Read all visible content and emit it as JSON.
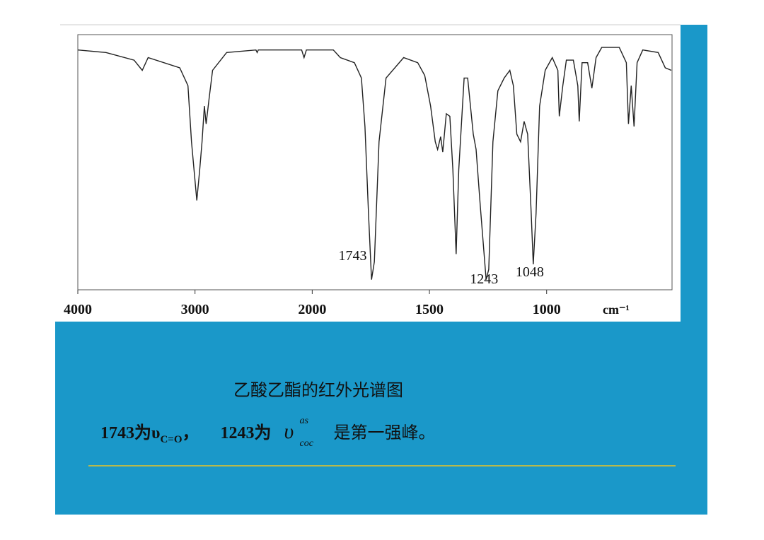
{
  "chart_data": {
    "type": "line",
    "x_label": "cm⁻¹",
    "xlim": [
      4000,
      465
    ],
    "xticks": [
      4000,
      3000,
      2000,
      1500,
      1000
    ],
    "scale_change": 2000,
    "ylim": [
      0,
      100
    ],
    "x": [
      4000,
      3760,
      3520,
      3450,
      3400,
      3130,
      3060,
      3030,
      2985,
      2960,
      2940,
      2920,
      2905,
      2880,
      2850,
      2730,
      2480,
      2470,
      2460,
      2090,
      2070,
      2050,
      1910,
      1880,
      1820,
      1790,
      1775,
      1760,
      1747,
      1735,
      1715,
      1685,
      1610,
      1550,
      1520,
      1495,
      1475,
      1465,
      1452,
      1443,
      1428,
      1413,
      1400,
      1386,
      1375,
      1352,
      1337,
      1313,
      1301,
      1283,
      1258,
      1247,
      1229,
      1208,
      1181,
      1157,
      1142,
      1127,
      1111,
      1096,
      1081,
      1066,
      1057,
      1045,
      1030,
      1006,
      976,
      952,
      946,
      931,
      916,
      886,
      867,
      861,
      849,
      825,
      807,
      789,
      765,
      690,
      660,
      651,
      639,
      627,
      614,
      590,
      524,
      494,
      468
    ],
    "series": [
      {
        "color": "#222222",
        "values": [
          94,
          93,
          90,
          86,
          91,
          87,
          80,
          58,
          35,
          47,
          58,
          72,
          65,
          75,
          86,
          93,
          94,
          93,
          94,
          94,
          91,
          94,
          94,
          91,
          89,
          83,
          64,
          30,
          4,
          11,
          58,
          83,
          91,
          89,
          84,
          72,
          58,
          55,
          60,
          54,
          69,
          68,
          47,
          14,
          47,
          83,
          83,
          61,
          55,
          33,
          4,
          8,
          58,
          78,
          83,
          86,
          80,
          61,
          58,
          66,
          61,
          30,
          10,
          30,
          72,
          86,
          91,
          86,
          68,
          80,
          90,
          90,
          80,
          66,
          89,
          89,
          79,
          91,
          95,
          95,
          89,
          65,
          80,
          64,
          89,
          94,
          93,
          87,
          86
        ]
      }
    ],
    "annotations": [
      {
        "text": "1743",
        "x": 1743
      },
      {
        "text": "1243",
        "x": 1243
      },
      {
        "text": "1048",
        "x": 1048
      }
    ]
  },
  "caption": {
    "title": "乙酸乙酯的红外光谱图",
    "line": {
      "a": "1743为υ",
      "a_sub": "C=O",
      "a_end": "，",
      "b": "1243为",
      "symbol": "υ",
      "sup": "as",
      "sub": "coc",
      "end": "是第一强峰。"
    }
  }
}
